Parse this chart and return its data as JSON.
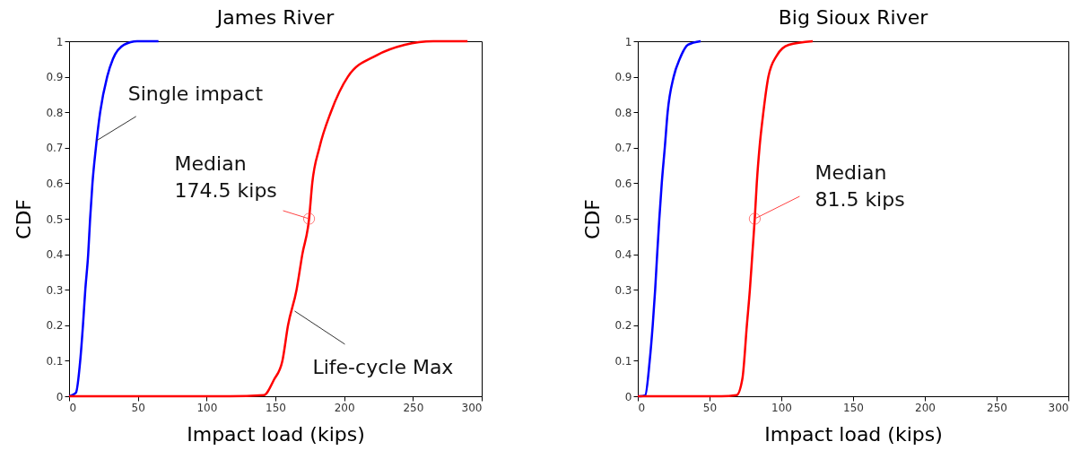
{
  "chart_data": [
    {
      "type": "line",
      "title": "James River",
      "xlabel": "Impact load (kips)",
      "ylabel": "CDF",
      "xlim": [
        0,
        300
      ],
      "xticks": [
        0,
        50,
        100,
        150,
        200,
        250,
        300
      ],
      "ylim": [
        0,
        1
      ],
      "yticks": [
        0,
        0.1,
        0.2,
        0.3,
        0.4,
        0.5,
        0.6,
        0.7,
        0.8,
        0.9,
        1
      ],
      "grid": false,
      "series": [
        {
          "color": "#0000ff",
          "x": [
            0,
            2,
            5,
            8.1,
            10.1,
            11.8,
            13.9,
            15.3,
            17,
            19.5,
            22.6,
            27.7,
            31.9,
            40,
            49.5,
            65
          ],
          "values": [
            0,
            0.003,
            0.01,
            0.1,
            0.2,
            0.3,
            0.4,
            0.5,
            0.6,
            0.7,
            0.8,
            0.9,
            0.95,
            0.99,
            1,
            1
          ]
        },
        {
          "color": "#ff0000",
          "x": [
            0,
            116.8,
            141.6,
            148.9,
            155.1,
            159.2,
            165.4,
            169.6,
            174.5,
            176.8,
            182,
            190.3,
            202.7,
            223.4,
            244,
            264.8,
            289.7
          ],
          "values": [
            0,
            0,
            0.003,
            0.046,
            0.1,
            0.2,
            0.3,
            0.4,
            0.5,
            0.6,
            0.7,
            0.8,
            0.9,
            0.96,
            0.99,
            1,
            1
          ]
        }
      ],
      "annotations": [
        {
          "text": "Single impact",
          "x": 20,
          "y": 0.72
        },
        {
          "text": "Median\n174.5 kips",
          "x": 174.5,
          "y": 0.5
        },
        {
          "text": "Life-cycle Max",
          "x": 164,
          "y": 0.24
        }
      ]
    },
    {
      "type": "line",
      "title": "Big Sioux River",
      "xlabel": "Impact load (kips)",
      "ylabel": "CDF",
      "xlim": [
        0,
        300
      ],
      "xticks": [
        0,
        50,
        100,
        150,
        200,
        250,
        300
      ],
      "ylim": [
        0,
        1
      ],
      "yticks": [
        0,
        0.1,
        0.2,
        0.3,
        0.4,
        0.5,
        0.6,
        0.7,
        0.8,
        0.9,
        1
      ],
      "grid": false,
      "series": [
        {
          "color": "#0000ff",
          "x": [
            0,
            2,
            5.2,
            8.3,
            10.4,
            12.1,
            13.5,
            15,
            16.7,
            18.8,
            20.8,
            25,
            29.2,
            35,
            43.8
          ],
          "values": [
            0,
            0,
            0.003,
            0.1,
            0.2,
            0.3,
            0.4,
            0.5,
            0.6,
            0.7,
            0.8,
            0.9,
            0.95,
            0.99,
            1
          ]
        },
        {
          "color": "#ff0000",
          "x": [
            0,
            58.3,
            68.8,
            72.9,
            76,
            78.1,
            79.8,
            81.5,
            82.9,
            84.8,
            87.5,
            91,
            96.9,
            105.2,
            121.9
          ],
          "values": [
            0,
            0,
            0.003,
            0.05,
            0.2,
            0.3,
            0.4,
            0.5,
            0.6,
            0.7,
            0.8,
            0.9,
            0.96,
            0.99,
            1
          ]
        }
      ],
      "annotations": [
        {
          "text": "Median\n81.5 kips",
          "x": 81.5,
          "y": 0.5
        }
      ]
    }
  ]
}
